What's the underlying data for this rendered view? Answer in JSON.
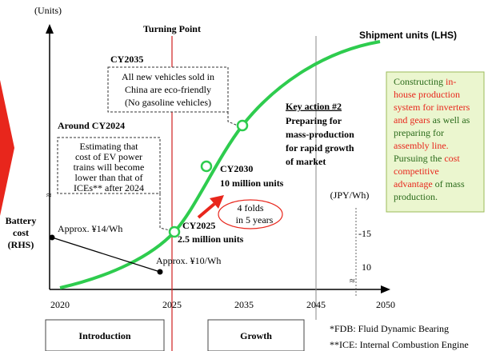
{
  "units_label": "(Units)",
  "turning_point": "Turning Point",
  "shipment_label": "Shipment units (LHS)",
  "cy2035": {
    "title": "CY2035",
    "lines": [
      "All new vehicles sold in",
      "China are eco-friendly",
      "(No gasoline vehicles)"
    ]
  },
  "cy2024": {
    "title": "Around CY2024",
    "lines": [
      "Estimating that",
      "cost of EV power",
      "trains will become",
      "lower than that of",
      "ICEs** after 2024"
    ]
  },
  "key_action": {
    "title": "Key action #2",
    "lines": [
      "Preparing for",
      "mass-production",
      "for rapid growth",
      "of market"
    ]
  },
  "green_box": {
    "lines": [
      [
        {
          "text": "Constructing ",
          "highlight": false
        },
        {
          "text": "in-",
          "highlight": true
        }
      ],
      [
        {
          "text": "house production",
          "highlight": true
        }
      ],
      [
        {
          "text": "system for inverters",
          "highlight": true
        }
      ],
      [
        {
          "text": "and gears",
          "highlight": true
        },
        {
          "text": " as well as",
          "highlight": false
        }
      ],
      [
        {
          "text": "preparing for",
          "highlight": false
        }
      ],
      [
        {
          "text": "assembly line.",
          "highlight": true
        }
      ],
      [
        {
          "text": "Pursuing the ",
          "highlight": false
        },
        {
          "text": "cost",
          "highlight": true
        }
      ],
      [
        {
          "text": "competitive",
          "highlight": true
        }
      ],
      [
        {
          "text": "advantage",
          "highlight": true
        },
        {
          "text": " of mass",
          "highlight": false
        }
      ],
      [
        {
          "text": "production.",
          "highlight": false
        }
      ]
    ]
  },
  "cy2030": {
    "year": "CY2030",
    "units": "10 million units"
  },
  "cy2025": {
    "year": "CY2025",
    "units": "2.5 million units"
  },
  "growth_note": [
    "4 folds",
    "in 5 years"
  ],
  "rhs_unit": "(JPY/Wh)",
  "rhs_ticks": [
    "-15",
    "10"
  ],
  "battery_label": [
    "Battery",
    "cost",
    "(RHS)"
  ],
  "battery_points": [
    "Approx. ¥14/Wh",
    "Approx. ¥10/Wh"
  ],
  "years": [
    "2020",
    "2025",
    "2035",
    "2045",
    "2050"
  ],
  "phases": [
    "Introduction",
    "Growth"
  ],
  "footnotes": [
    "*FDB: Fluid Dynamic Bearing",
    "**ICE: Internal Combustion Engine"
  ]
}
